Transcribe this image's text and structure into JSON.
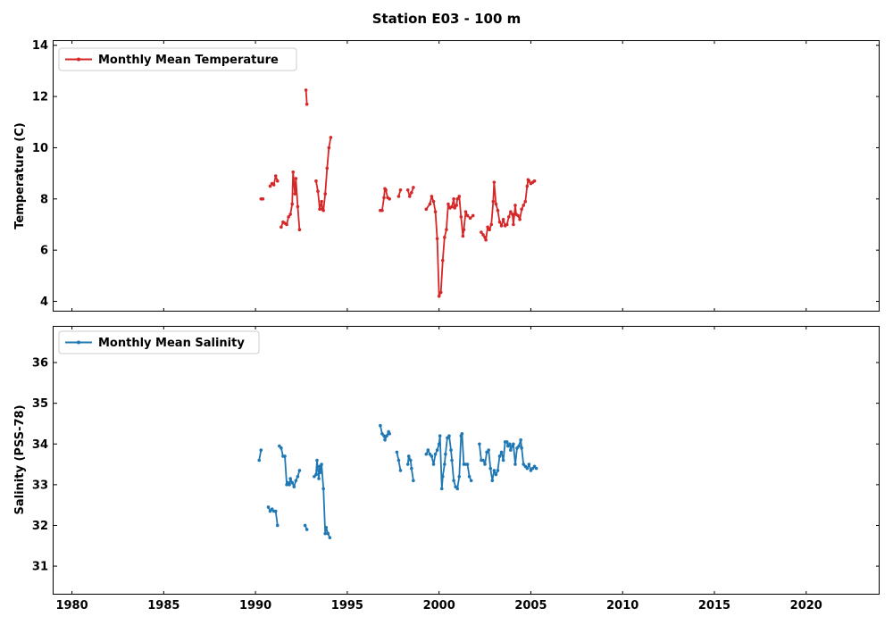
{
  "figure": {
    "title": "Station E03 - 100 m"
  },
  "chart_data": [
    {
      "type": "line",
      "title": "Station E03 - 100 m",
      "xlabel": "",
      "ylabel": "Temperature (C)",
      "xlim": [
        1979,
        2024
      ],
      "ylim": [
        3.6,
        14.2
      ],
      "xticks": [
        1980,
        1985,
        1990,
        1995,
        2000,
        2005,
        2010,
        2015,
        2020
      ],
      "yticks": [
        4,
        6,
        8,
        10,
        12,
        14
      ],
      "legend": "top-left",
      "grid": false,
      "series": [
        {
          "name": "Monthly Mean Temperature",
          "color": "#d62728",
          "segments": [
            [
              [
                1990.3,
                8.0
              ],
              [
                1990.4,
                8.0
              ]
            ],
            [
              [
                1990.8,
                8.5
              ],
              [
                1990.9,
                8.6
              ],
              [
                1991.0,
                8.55
              ],
              [
                1991.1,
                8.9
              ],
              [
                1991.2,
                8.7
              ]
            ],
            [
              [
                1991.4,
                6.9
              ],
              [
                1991.5,
                7.1
              ],
              [
                1991.6,
                7.05
              ],
              [
                1991.7,
                7.0
              ],
              [
                1991.8,
                7.3
              ],
              [
                1991.9,
                7.4
              ],
              [
                1992.0,
                7.8
              ],
              [
                1992.05,
                9.05
              ],
              [
                1992.15,
                8.2
              ],
              [
                1992.2,
                8.8
              ],
              [
                1992.3,
                7.7
              ],
              [
                1992.4,
                6.8
              ]
            ],
            [
              [
                1992.75,
                12.25
              ],
              [
                1992.8,
                11.7
              ]
            ],
            [
              [
                1993.3,
                8.7
              ],
              [
                1993.4,
                8.3
              ],
              [
                1993.5,
                7.6
              ],
              [
                1993.6,
                7.9
              ],
              [
                1993.65,
                7.6
              ],
              [
                1993.7,
                7.55
              ],
              [
                1993.8,
                8.2
              ],
              [
                1993.9,
                9.2
              ],
              [
                1994.0,
                10.0
              ],
              [
                1994.1,
                10.4
              ]
            ],
            [
              [
                1996.8,
                7.55
              ],
              [
                1996.9,
                7.55
              ],
              [
                1997.0,
                8.05
              ],
              [
                1997.05,
                8.4
              ],
              [
                1997.1,
                8.35
              ],
              [
                1997.2,
                8.05
              ],
              [
                1997.3,
                8.0
              ]
            ],
            [
              [
                1997.8,
                8.1
              ],
              [
                1997.9,
                8.35
              ]
            ],
            [
              [
                1998.3,
                8.35
              ],
              [
                1998.4,
                8.1
              ],
              [
                1998.5,
                8.25
              ],
              [
                1998.6,
                8.45
              ]
            ],
            [
              [
                1999.3,
                7.6
              ],
              [
                1999.5,
                7.8
              ],
              [
                1999.6,
                8.1
              ],
              [
                1999.7,
                7.9
              ],
              [
                1999.8,
                7.5
              ],
              [
                1999.9,
                6.45
              ],
              [
                2000.0,
                4.2
              ],
              [
                2000.1,
                4.35
              ],
              [
                2000.2,
                5.6
              ],
              [
                2000.3,
                6.5
              ],
              [
                2000.4,
                6.8
              ],
              [
                2000.5,
                7.8
              ],
              [
                2000.6,
                7.65
              ],
              [
                2000.7,
                7.7
              ],
              [
                2000.8,
                8.0
              ],
              [
                2000.85,
                7.65
              ],
              [
                2000.95,
                7.75
              ],
              [
                2001.0,
                8.0
              ],
              [
                2001.1,
                8.1
              ],
              [
                2001.2,
                7.3
              ],
              [
                2001.3,
                6.55
              ],
              [
                2001.35,
                6.8
              ],
              [
                2001.45,
                7.5
              ],
              [
                2001.55,
                7.35
              ],
              [
                2001.7,
                7.25
              ],
              [
                2001.85,
                7.35
              ]
            ],
            [
              [
                2002.3,
                6.7
              ],
              [
                2002.4,
                6.6
              ],
              [
                2002.5,
                6.5
              ],
              [
                2002.55,
                6.4
              ],
              [
                2002.65,
                6.9
              ],
              [
                2002.75,
                6.8
              ],
              [
                2002.85,
                7.0
              ],
              [
                2002.95,
                7.9
              ],
              [
                2003.0,
                8.65
              ],
              [
                2003.1,
                7.8
              ],
              [
                2003.2,
                7.55
              ],
              [
                2003.3,
                7.1
              ],
              [
                2003.4,
                6.95
              ],
              [
                2003.5,
                7.2
              ],
              [
                2003.6,
                6.95
              ],
              [
                2003.7,
                7.0
              ],
              [
                2003.8,
                7.3
              ],
              [
                2003.9,
                7.5
              ],
              [
                2004.0,
                7.4
              ],
              [
                2004.05,
                7.0
              ],
              [
                2004.15,
                7.75
              ],
              [
                2004.2,
                7.4
              ],
              [
                2004.3,
                7.35
              ],
              [
                2004.4,
                7.2
              ],
              [
                2004.5,
                7.6
              ],
              [
                2004.6,
                7.75
              ],
              [
                2004.7,
                7.9
              ],
              [
                2004.8,
                8.5
              ],
              [
                2004.85,
                8.75
              ],
              [
                2004.9,
                8.7
              ],
              [
                2005.0,
                8.6
              ],
              [
                2005.1,
                8.65
              ],
              [
                2005.2,
                8.7
              ]
            ]
          ]
        }
      ]
    },
    {
      "type": "line",
      "xlabel": "",
      "ylabel": "Salinity (PSS-78)",
      "xlim": [
        1979,
        2024
      ],
      "ylim": [
        30.3,
        36.9
      ],
      "xticks": [
        1980,
        1985,
        1990,
        1995,
        2000,
        2005,
        2010,
        2015,
        2020
      ],
      "yticks": [
        31,
        32,
        33,
        34,
        35,
        36
      ],
      "legend": "top-left",
      "grid": false,
      "series": [
        {
          "name": "Monthly Mean Salinity",
          "color": "#1f77b4",
          "segments": [
            [
              [
                1990.2,
                33.6
              ],
              [
                1990.3,
                33.85
              ]
            ],
            [
              [
                1990.7,
                32.45
              ],
              [
                1990.8,
                32.35
              ],
              [
                1990.9,
                32.4
              ],
              [
                1991.0,
                32.35
              ],
              [
                1991.1,
                32.35
              ],
              [
                1991.2,
                32.0
              ]
            ],
            [
              [
                1991.3,
                33.95
              ],
              [
                1991.4,
                33.9
              ],
              [
                1991.5,
                33.7
              ],
              [
                1991.6,
                33.7
              ],
              [
                1991.7,
                33.0
              ],
              [
                1991.75,
                33.05
              ],
              [
                1991.85,
                33.0
              ],
              [
                1991.9,
                33.15
              ],
              [
                1992.0,
                33.05
              ],
              [
                1992.1,
                32.95
              ],
              [
                1992.2,
                33.1
              ],
              [
                1992.3,
                33.2
              ],
              [
                1992.4,
                33.35
              ]
            ],
            [
              [
                1992.7,
                32.0
              ],
              [
                1992.8,
                31.9
              ]
            ],
            [
              [
                1993.2,
                33.2
              ],
              [
                1993.3,
                33.25
              ],
              [
                1993.35,
                33.6
              ],
              [
                1993.45,
                33.15
              ],
              [
                1993.5,
                33.45
              ],
              [
                1993.55,
                33.3
              ],
              [
                1993.6,
                33.5
              ],
              [
                1993.7,
                32.9
              ],
              [
                1993.8,
                31.8
              ],
              [
                1993.85,
                31.95
              ],
              [
                1993.95,
                31.8
              ],
              [
                1994.05,
                31.7
              ]
            ],
            [
              [
                1996.8,
                34.45
              ],
              [
                1996.9,
                34.25
              ],
              [
                1997.0,
                34.2
              ],
              [
                1997.05,
                34.1
              ],
              [
                1997.15,
                34.2
              ],
              [
                1997.25,
                34.3
              ],
              [
                1997.3,
                34.25
              ]
            ],
            [
              [
                1997.7,
                33.8
              ],
              [
                1997.8,
                33.6
              ],
              [
                1997.9,
                33.35
              ]
            ],
            [
              [
                1998.3,
                33.5
              ],
              [
                1998.35,
                33.7
              ],
              [
                1998.45,
                33.6
              ],
              [
                1998.5,
                33.4
              ],
              [
                1998.6,
                33.1
              ]
            ],
            [
              [
                1999.3,
                33.75
              ],
              [
                1999.4,
                33.85
              ],
              [
                1999.5,
                33.75
              ],
              [
                1999.6,
                33.7
              ],
              [
                1999.7,
                33.5
              ],
              [
                1999.8,
                33.75
              ],
              [
                1999.9,
                33.85
              ],
              [
                2000.0,
                34.0
              ],
              [
                2000.05,
                34.2
              ],
              [
                2000.15,
                32.9
              ],
              [
                2000.2,
                33.2
              ],
              [
                2000.3,
                33.5
              ],
              [
                2000.35,
                33.75
              ],
              [
                2000.45,
                34.15
              ],
              [
                2000.55,
                34.2
              ],
              [
                2000.65,
                33.85
              ],
              [
                2000.7,
                33.6
              ],
              [
                2000.8,
                33.1
              ],
              [
                2000.9,
                32.95
              ],
              [
                2001.0,
                32.9
              ],
              [
                2001.1,
                33.2
              ],
              [
                2001.2,
                34.2
              ],
              [
                2001.25,
                34.25
              ],
              [
                2001.35,
                33.5
              ],
              [
                2001.45,
                33.5
              ],
              [
                2001.55,
                33.5
              ],
              [
                2001.65,
                33.2
              ],
              [
                2001.75,
                33.1
              ]
            ],
            [
              [
                2002.2,
                34.0
              ],
              [
                2002.3,
                33.6
              ],
              [
                2002.4,
                33.6
              ],
              [
                2002.5,
                33.5
              ],
              [
                2002.6,
                33.8
              ],
              [
                2002.7,
                33.85
              ],
              [
                2002.8,
                33.4
              ],
              [
                2002.9,
                33.1
              ],
              [
                2003.0,
                33.35
              ],
              [
                2003.1,
                33.25
              ],
              [
                2003.2,
                33.35
              ],
              [
                2003.3,
                33.7
              ],
              [
                2003.4,
                33.8
              ],
              [
                2003.5,
                33.6
              ],
              [
                2003.6,
                34.05
              ],
              [
                2003.7,
                34.05
              ],
              [
                2003.75,
                33.95
              ],
              [
                2003.85,
                34.0
              ],
              [
                2003.9,
                33.85
              ],
              [
                2004.0,
                33.95
              ],
              [
                2004.05,
                34.0
              ],
              [
                2004.15,
                33.5
              ],
              [
                2004.25,
                33.9
              ],
              [
                2004.35,
                33.95
              ],
              [
                2004.45,
                34.1
              ],
              [
                2004.5,
                33.9
              ],
              [
                2004.6,
                33.5
              ],
              [
                2004.7,
                33.45
              ],
              [
                2004.8,
                33.4
              ],
              [
                2004.9,
                33.5
              ],
              [
                2005.0,
                33.35
              ],
              [
                2005.1,
                33.4
              ],
              [
                2005.2,
                33.45
              ],
              [
                2005.3,
                33.4
              ]
            ]
          ]
        }
      ]
    }
  ]
}
